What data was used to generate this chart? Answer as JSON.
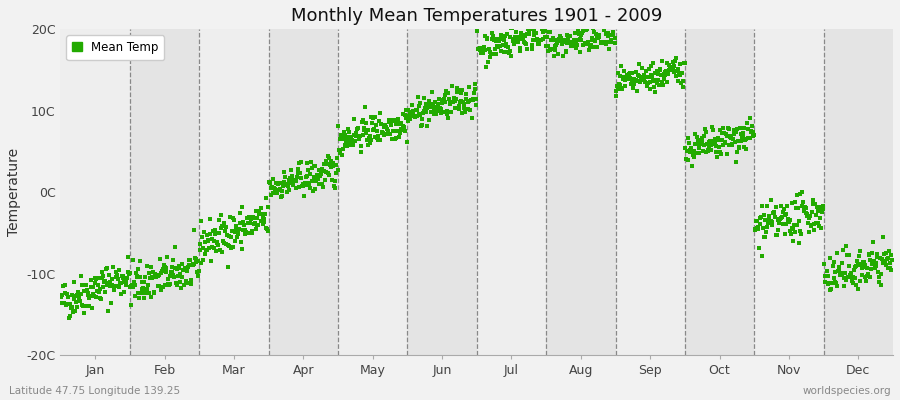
{
  "title": "Monthly Mean Temperatures 1901 - 2009",
  "ylabel": "Temperature",
  "xlabel_labels": [
    "Jan",
    "Feb",
    "Mar",
    "Apr",
    "May",
    "Jun",
    "Jul",
    "Aug",
    "Sep",
    "Oct",
    "Nov",
    "Dec"
  ],
  "ylim": [
    -20,
    20
  ],
  "yticks": [
    -20,
    -10,
    0,
    10,
    20
  ],
  "ytick_labels": [
    "-20C",
    "-10C",
    "0C",
    "10C",
    "20C"
  ],
  "dot_color": "#22AA00",
  "dot_size": 6,
  "background_color": "#F2F2F2",
  "plot_bg_color_light": "#EEEEEE",
  "plot_bg_color_dark": "#E4E4E4",
  "grid_color": "#888888",
  "legend_label": "Mean Temp",
  "footer_left": "Latitude 47.75 Longitude 139.25",
  "footer_right": "worldspecies.org",
  "monthly_mean_temps": [
    -13.5,
    -11.5,
    -6.5,
    0.5,
    6.5,
    9.5,
    17.5,
    18.0,
    13.0,
    5.0,
    -4.5,
    -10.5
  ],
  "monthly_trend": [
    0.03,
    0.02,
    0.03,
    0.02,
    0.02,
    0.02,
    0.02,
    0.01,
    0.02,
    0.02,
    0.02,
    0.02
  ],
  "monthly_noise": [
    2.5,
    2.5,
    2.5,
    2.0,
    2.0,
    1.8,
    1.8,
    1.8,
    1.8,
    2.0,
    2.5,
    2.5
  ],
  "n_years": 109,
  "start_year": 1901,
  "seed": 42
}
